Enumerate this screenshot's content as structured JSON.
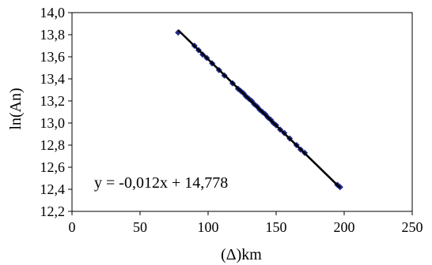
{
  "chart_data": {
    "type": "scatter",
    "title": "",
    "xlabel": "(Δ)km",
    "ylabel": "ln(An)",
    "xlim": [
      0,
      250
    ],
    "ylim": [
      12.2,
      14.0
    ],
    "x_ticks": [
      0,
      50,
      100,
      150,
      200,
      250
    ],
    "x_tick_labels": [
      "0",
      "50",
      "100",
      "150",
      "200",
      "250"
    ],
    "y_ticks": [
      12.2,
      12.4,
      12.6,
      12.8,
      13.0,
      13.2,
      13.4,
      13.6,
      13.8,
      14.0
    ],
    "y_tick_labels": [
      "12,2",
      "12,4",
      "12,6",
      "12,8",
      "13,0",
      "13,2",
      "13,4",
      "13,6",
      "13,8",
      "14,0"
    ],
    "grid": false,
    "legend": "none",
    "marker_color": "#1f2a8c",
    "series": [
      {
        "x": [
          78,
          90,
          93,
          96,
          99,
          103,
          108,
          112,
          118,
          122,
          124,
          126,
          128,
          130,
          132,
          134,
          136,
          138,
          140,
          142,
          144,
          146,
          148,
          150,
          153,
          156,
          160,
          165,
          168,
          171,
          195,
          197
        ],
        "y": [
          13.82,
          13.7,
          13.66,
          13.62,
          13.59,
          13.54,
          13.48,
          13.43,
          13.36,
          13.31,
          13.29,
          13.27,
          13.24,
          13.22,
          13.2,
          13.17,
          13.15,
          13.12,
          13.1,
          13.08,
          13.05,
          13.03,
          13.0,
          12.98,
          12.94,
          12.91,
          12.86,
          12.8,
          12.76,
          12.73,
          12.44,
          12.42
        ]
      }
    ],
    "trendline": {
      "type": "linear",
      "slope": -0.012,
      "intercept": 14.778,
      "x_range": [
        78,
        197
      ],
      "equation_label": "y = -0,012x + 14,778",
      "color": "#000000"
    }
  }
}
